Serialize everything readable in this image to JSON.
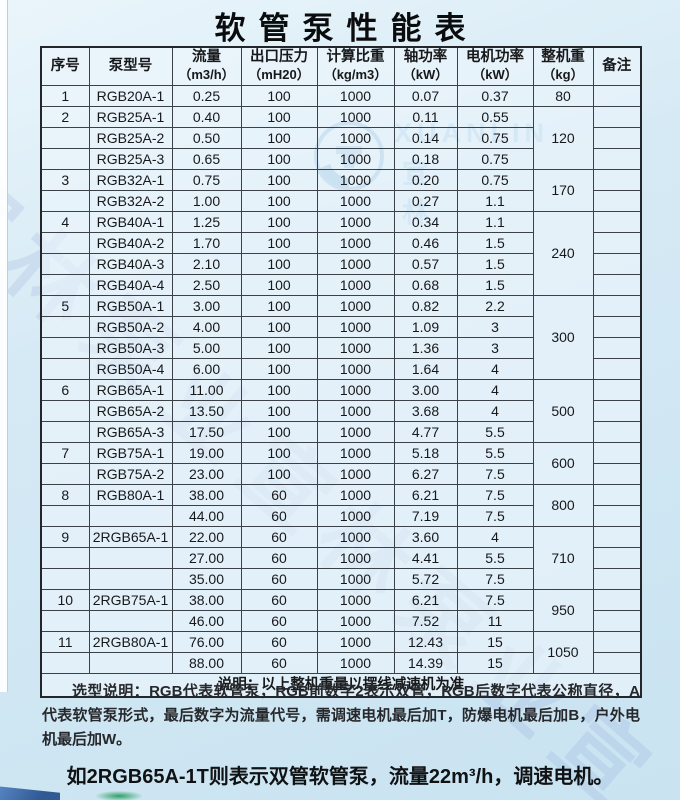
{
  "title": "软管泵性能表",
  "table": {
    "headers": [
      {
        "label": "序号",
        "unit": ""
      },
      {
        "label": "泵型号",
        "unit": ""
      },
      {
        "label": "流量",
        "unit": "（m3/h）"
      },
      {
        "label": "出口压力",
        "unit": "（mH20）"
      },
      {
        "label": "计算比重",
        "unit": "（kg/m3）"
      },
      {
        "label": "轴功率",
        "unit": "（kW）"
      },
      {
        "label": "电机功率",
        "unit": "（kW）"
      },
      {
        "label": "整机重",
        "unit": "（kg）"
      },
      {
        "label": "备注",
        "unit": ""
      }
    ],
    "rows": [
      {
        "sn": "1",
        "model": "RGB20A-1",
        "flow": "0.25",
        "pressure": "100",
        "density": "1000",
        "shaft": "0.07",
        "motor": "0.37",
        "weight": "80",
        "weight_span": 1
      },
      {
        "sn": "2",
        "model": "RGB25A-1",
        "flow": "0.40",
        "pressure": "100",
        "density": "1000",
        "shaft": "0.11",
        "motor": "0.55",
        "weight": "120",
        "weight_span": 3
      },
      {
        "sn": "",
        "model": "RGB25A-2",
        "flow": "0.50",
        "pressure": "100",
        "density": "1000",
        "shaft": "0.14",
        "motor": "0.75"
      },
      {
        "sn": "",
        "model": "RGB25A-3",
        "flow": "0.65",
        "pressure": "100",
        "density": "1000",
        "shaft": "0.18",
        "motor": "0.75"
      },
      {
        "sn": "3",
        "model": "RGB32A-1",
        "flow": "0.75",
        "pressure": "100",
        "density": "1000",
        "shaft": "0.20",
        "motor": "0.75",
        "weight": "170",
        "weight_span": 2
      },
      {
        "sn": "",
        "model": "RGB32A-2",
        "flow": "1.00",
        "pressure": "100",
        "density": "1000",
        "shaft": "0.27",
        "motor": "1.1"
      },
      {
        "sn": "4",
        "model": "RGB40A-1",
        "flow": "1.25",
        "pressure": "100",
        "density": "1000",
        "shaft": "0.34",
        "motor": "1.1",
        "weight": "240",
        "weight_span": 4
      },
      {
        "sn": "",
        "model": "RGB40A-2",
        "flow": "1.70",
        "pressure": "100",
        "density": "1000",
        "shaft": "0.46",
        "motor": "1.5"
      },
      {
        "sn": "",
        "model": "RGB40A-3",
        "flow": "2.10",
        "pressure": "100",
        "density": "1000",
        "shaft": "0.57",
        "motor": "1.5"
      },
      {
        "sn": "",
        "model": "RGB40A-4",
        "flow": "2.50",
        "pressure": "100",
        "density": "1000",
        "shaft": "0.68",
        "motor": "1.5"
      },
      {
        "sn": "5",
        "model": "RGB50A-1",
        "flow": "3.00",
        "pressure": "100",
        "density": "1000",
        "shaft": "0.82",
        "motor": "2.2",
        "weight": "300",
        "weight_span": 4
      },
      {
        "sn": "",
        "model": "RGB50A-2",
        "flow": "4.00",
        "pressure": "100",
        "density": "1000",
        "shaft": "1.09",
        "motor": "3"
      },
      {
        "sn": "",
        "model": "RGB50A-3",
        "flow": "5.00",
        "pressure": "100",
        "density": "1000",
        "shaft": "1.36",
        "motor": "3"
      },
      {
        "sn": "",
        "model": "RGB50A-4",
        "flow": "6.00",
        "pressure": "100",
        "density": "1000",
        "shaft": "1.64",
        "motor": "4"
      },
      {
        "sn": "6",
        "model": "RGB65A-1",
        "flow": "11.00",
        "pressure": "100",
        "density": "1000",
        "shaft": "3.00",
        "motor": "4",
        "weight": "500",
        "weight_span": 3
      },
      {
        "sn": "",
        "model": "RGB65A-2",
        "flow": "13.50",
        "pressure": "100",
        "density": "1000",
        "shaft": "3.68",
        "motor": "4"
      },
      {
        "sn": "",
        "model": "RGB65A-3",
        "flow": "17.50",
        "pressure": "100",
        "density": "1000",
        "shaft": "4.77",
        "motor": "5.5"
      },
      {
        "sn": "7",
        "model": "RGB75A-1",
        "flow": "19.00",
        "pressure": "100",
        "density": "1000",
        "shaft": "5.18",
        "motor": "5.5",
        "weight": "600",
        "weight_span": 2
      },
      {
        "sn": "",
        "model": "RGB75A-2",
        "flow": "23.00",
        "pressure": "100",
        "density": "1000",
        "shaft": "6.27",
        "motor": "7.5"
      },
      {
        "sn": "8",
        "model": "RGB80A-1",
        "flow": "38.00",
        "pressure": "60",
        "density": "1000",
        "shaft": "6.21",
        "motor": "7.5",
        "weight": "800",
        "weight_span": 2
      },
      {
        "sn": "",
        "model": "",
        "flow": "44.00",
        "pressure": "60",
        "density": "1000",
        "shaft": "7.19",
        "motor": "7.5"
      },
      {
        "sn": "9",
        "model": "2RGB65A-1",
        "flow": "22.00",
        "pressure": "60",
        "density": "1000",
        "shaft": "3.60",
        "motor": "4",
        "weight": "710",
        "weight_span": 3
      },
      {
        "sn": "",
        "model": "",
        "flow": "27.00",
        "pressure": "60",
        "density": "1000",
        "shaft": "4.41",
        "motor": "5.5"
      },
      {
        "sn": "",
        "model": "",
        "flow": "35.00",
        "pressure": "60",
        "density": "1000",
        "shaft": "5.72",
        "motor": "7.5"
      },
      {
        "sn": "10",
        "model": "2RGB75A-1",
        "flow": "38.00",
        "pressure": "60",
        "density": "1000",
        "shaft": "6.21",
        "motor": "7.5",
        "weight": "950",
        "weight_span": 2
      },
      {
        "sn": "",
        "model": "",
        "flow": "46.00",
        "pressure": "60",
        "density": "1000",
        "shaft": "7.52",
        "motor": "11"
      },
      {
        "sn": "11",
        "model": "2RGB80A-1",
        "flow": "76.00",
        "pressure": "60",
        "density": "1000",
        "shaft": "12.43",
        "motor": "15",
        "weight": "1050",
        "weight_span": 2
      },
      {
        "sn": "",
        "model": "",
        "flow": "88.00",
        "pressure": "60",
        "density": "1000",
        "shaft": "14.39",
        "motor": "15"
      }
    ],
    "note": "说明：以上整机重量以摆线减速机为准"
  },
  "watermark": {
    "logo_text": "XUANLIN",
    "logo_cn": "宣 林",
    "diagonal_text": "宣林泵业宣林泵业宣"
  },
  "footer": {
    "para": "选型说明：RGB代表软管泵，RGB前数字2表示双管，RGB后数字代表公称直径，A代表软管泵形式，最后数字为流量代号，需调速电机最后加T，防爆电机最后加B，户外电机最后加W。",
    "example": "如2RGB65A-1T则表示双管软管泵，流量22m³/h，调速电机。"
  }
}
